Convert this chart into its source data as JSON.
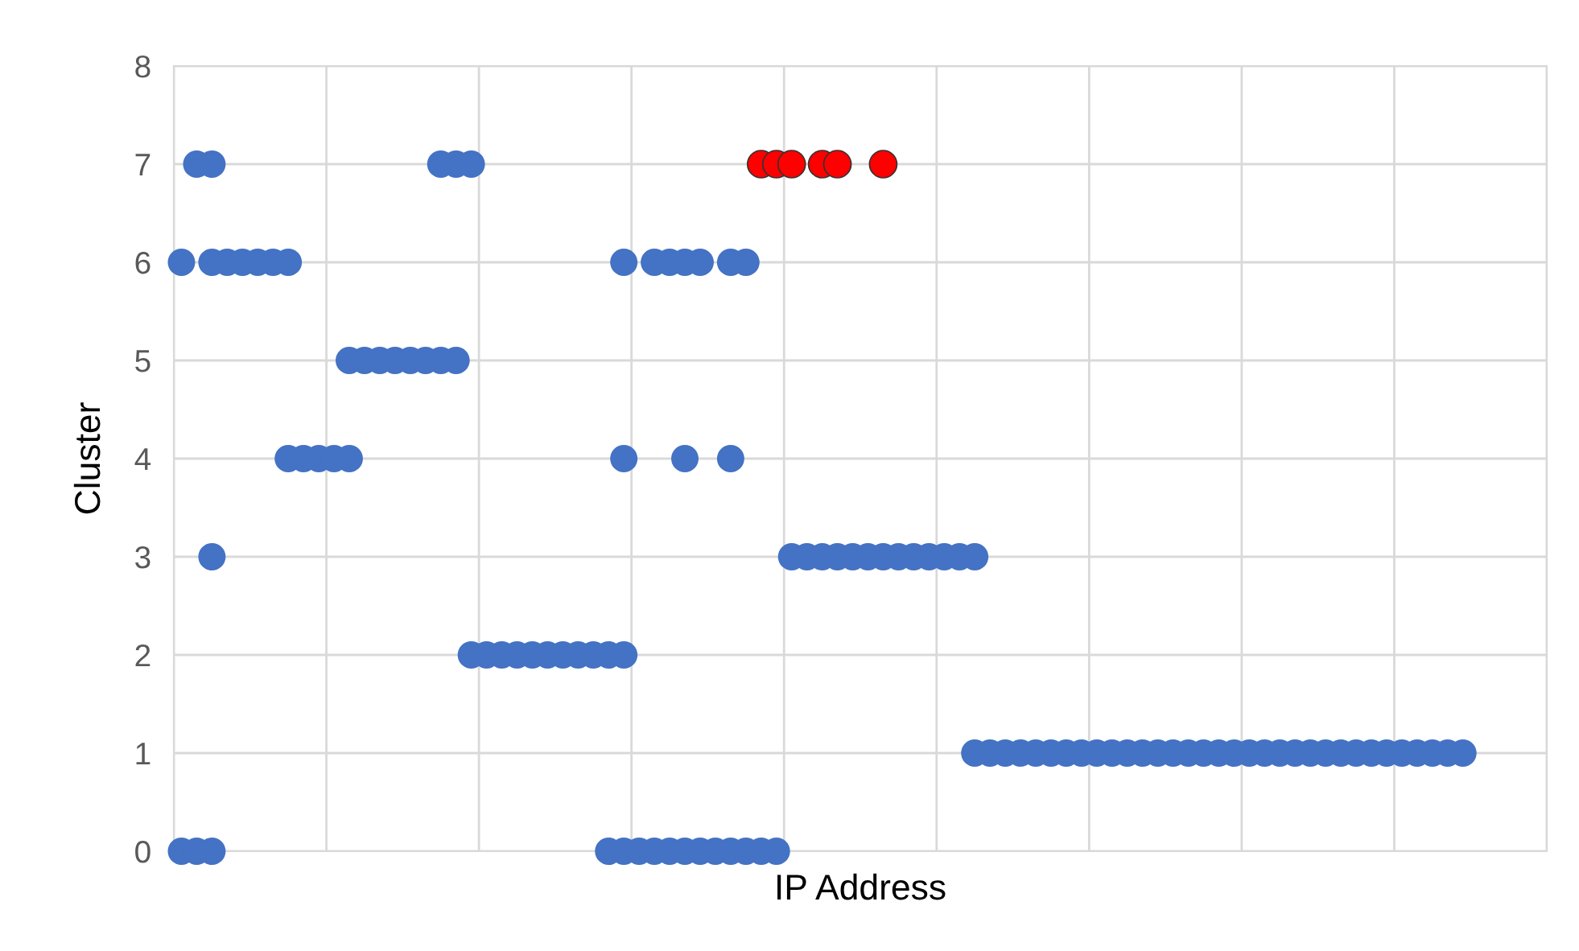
{
  "chart_data": {
    "type": "scatter",
    "xlabel": "IP Address",
    "ylabel": "Cluster",
    "categories": [
      null,
      null,
      null,
      null,
      null,
      null,
      null,
      null,
      null,
      null,
      null,
      null,
      null,
      null,
      null,
      null,
      null,
      null,
      null,
      null,
      null,
      null,
      null,
      null,
      null,
      null,
      null,
      null,
      null,
      null,
      null,
      null,
      null,
      null,
      null,
      null,
      null,
      null,
      null,
      null,
      null,
      null,
      null,
      null,
      null,
      null,
      null,
      null,
      null,
      null,
      null,
      null,
      null,
      null,
      null,
      null,
      null,
      null,
      null,
      null,
      null,
      null,
      null,
      null,
      null,
      null,
      null,
      null,
      null,
      null,
      null,
      null,
      null,
      null,
      null,
      null,
      null,
      null,
      null,
      null,
      null,
      null,
      null,
      null,
      null,
      null,
      null,
      null,
      null,
      null
    ],
    "ylim": [
      0,
      8
    ],
    "yticks": [
      0,
      1,
      2,
      3,
      4,
      5,
      6,
      7,
      8
    ],
    "tick_labels": "y",
    "grid": true,
    "marker": "circle",
    "series": [
      {
        "color": "#4472c4",
        "values": [
          0,
          0,
          0,
          null,
          null,
          null,
          null,
          null,
          null,
          null,
          null,
          null,
          null,
          null,
          null,
          null,
          null,
          null,
          null,
          null,
          null,
          null,
          null,
          null,
          null,
          null,
          null,
          null,
          0,
          0,
          0,
          0,
          0,
          0,
          0,
          0,
          0,
          0,
          0,
          0,
          null,
          null,
          null,
          null,
          null,
          null,
          null,
          null,
          null,
          null,
          null,
          null,
          null,
          null,
          null,
          null,
          null,
          null,
          null,
          null,
          null,
          null,
          null,
          null,
          null,
          null,
          null,
          null,
          null,
          null,
          null,
          null,
          null,
          null,
          null,
          null,
          null,
          null,
          null,
          null,
          null,
          null,
          null,
          null,
          null,
          null,
          null,
          null,
          null,
          null
        ]
      },
      {
        "color": "#4472c4",
        "values": [
          null,
          null,
          null,
          null,
          null,
          null,
          null,
          null,
          null,
          null,
          null,
          null,
          null,
          null,
          null,
          null,
          null,
          null,
          null,
          null,
          null,
          null,
          null,
          null,
          null,
          null,
          null,
          null,
          null,
          null,
          null,
          null,
          null,
          null,
          null,
          null,
          null,
          null,
          null,
          null,
          null,
          null,
          null,
          null,
          null,
          null,
          null,
          null,
          null,
          null,
          null,
          null,
          1,
          1,
          1,
          1,
          1,
          1,
          1,
          1,
          1,
          1,
          1,
          1,
          1,
          1,
          1,
          1,
          1,
          1,
          1,
          1,
          1,
          1,
          1,
          1,
          1,
          1,
          1,
          1,
          1,
          1,
          1,
          1,
          1,
          null,
          null,
          null,
          null,
          null
        ]
      },
      {
        "color": "#4472c4",
        "values": [
          null,
          null,
          null,
          null,
          null,
          null,
          null,
          null,
          null,
          null,
          null,
          null,
          null,
          null,
          null,
          null,
          null,
          null,
          null,
          2,
          2,
          2,
          2,
          2,
          2,
          2,
          2,
          2,
          2,
          2,
          null,
          null,
          null,
          null,
          null,
          null,
          null,
          null,
          null,
          null,
          null,
          null,
          null,
          null,
          null,
          null,
          null,
          null,
          null,
          null,
          null,
          null,
          null,
          null,
          null,
          null,
          null,
          null,
          null,
          null,
          null,
          null,
          null,
          null,
          null,
          null,
          null,
          null,
          null,
          null,
          null,
          null,
          null,
          null,
          null,
          null,
          null,
          null,
          null,
          null,
          null,
          null,
          null,
          null,
          null,
          null,
          null,
          null,
          null,
          null
        ]
      },
      {
        "color": "#4472c4",
        "values": [
          null,
          null,
          3,
          null,
          null,
          null,
          null,
          null,
          null,
          null,
          null,
          null,
          null,
          null,
          null,
          null,
          null,
          null,
          null,
          null,
          null,
          null,
          null,
          null,
          null,
          null,
          null,
          null,
          null,
          null,
          null,
          null,
          null,
          null,
          null,
          null,
          null,
          null,
          null,
          null,
          3,
          3,
          3,
          3,
          3,
          3,
          3,
          3,
          3,
          3,
          3,
          3,
          3,
          null,
          null,
          null,
          null,
          null,
          null,
          null,
          null,
          null,
          null,
          null,
          null,
          null,
          null,
          null,
          null,
          null,
          null,
          null,
          null,
          null,
          null,
          null,
          null,
          null,
          null,
          null,
          null,
          null,
          null,
          null,
          null,
          null,
          null,
          null,
          null,
          null
        ]
      },
      {
        "color": "#4472c4",
        "values": [
          null,
          null,
          null,
          null,
          null,
          null,
          null,
          4,
          4,
          4,
          4,
          4,
          null,
          null,
          null,
          null,
          null,
          null,
          null,
          null,
          null,
          null,
          null,
          null,
          null,
          null,
          null,
          null,
          null,
          4,
          null,
          null,
          null,
          4,
          null,
          null,
          4,
          null,
          null,
          null,
          null,
          null,
          null,
          null,
          null,
          null,
          null,
          null,
          null,
          null,
          null,
          null,
          null,
          null,
          null,
          null,
          null,
          null,
          null,
          null,
          null,
          null,
          null,
          null,
          null,
          null,
          null,
          null,
          null,
          null,
          null,
          null,
          null,
          null,
          null,
          null,
          null,
          null,
          null,
          null,
          null,
          null,
          null,
          null,
          null,
          null,
          null,
          null,
          null,
          null
        ]
      },
      {
        "color": "#4472c4",
        "values": [
          null,
          null,
          null,
          null,
          null,
          null,
          null,
          null,
          null,
          null,
          null,
          5,
          5,
          5,
          5,
          5,
          5,
          5,
          5,
          null,
          null,
          null,
          null,
          null,
          null,
          null,
          null,
          null,
          null,
          null,
          null,
          null,
          null,
          null,
          null,
          null,
          null,
          null,
          null,
          null,
          null,
          null,
          null,
          null,
          null,
          null,
          null,
          null,
          null,
          null,
          null,
          null,
          null,
          null,
          null,
          null,
          null,
          null,
          null,
          null,
          null,
          null,
          null,
          null,
          null,
          null,
          null,
          null,
          null,
          null,
          null,
          null,
          null,
          null,
          null,
          null,
          null,
          null,
          null,
          null,
          null,
          null,
          null,
          null,
          null,
          null,
          null,
          null,
          null,
          null
        ]
      },
      {
        "color": "#4472c4",
        "values": [
          6,
          null,
          6,
          6,
          6,
          6,
          6,
          6,
          null,
          null,
          null,
          null,
          null,
          null,
          null,
          null,
          null,
          null,
          null,
          null,
          null,
          null,
          null,
          null,
          null,
          null,
          null,
          null,
          null,
          6,
          null,
          6,
          6,
          6,
          6,
          null,
          6,
          6,
          null,
          null,
          null,
          null,
          null,
          null,
          null,
          null,
          null,
          null,
          null,
          null,
          null,
          null,
          null,
          null,
          null,
          null,
          null,
          null,
          null,
          null,
          null,
          null,
          null,
          null,
          null,
          null,
          null,
          null,
          null,
          null,
          null,
          null,
          null,
          null,
          null,
          null,
          null,
          null,
          null,
          null,
          null,
          null,
          null,
          null,
          null,
          null,
          null,
          null,
          null,
          null
        ]
      },
      {
        "color": "#4472c4",
        "values": [
          null,
          7,
          7,
          null,
          null,
          null,
          null,
          null,
          null,
          null,
          null,
          null,
          null,
          null,
          null,
          null,
          null,
          7,
          7,
          7,
          null,
          null,
          null,
          null,
          null,
          null,
          null,
          null,
          null,
          null,
          null,
          null,
          null,
          null,
          null,
          null,
          null,
          null,
          null,
          null,
          null,
          null,
          null,
          null,
          null,
          null,
          null,
          null,
          null,
          null,
          null,
          null,
          null,
          null,
          null,
          null,
          null,
          null,
          null,
          null,
          null,
          null,
          null,
          null,
          null,
          null,
          null,
          null,
          null,
          null,
          null,
          null,
          null,
          null,
          null,
          null,
          null,
          null,
          null,
          null,
          null,
          null,
          null,
          null,
          null,
          null,
          null,
          null,
          null,
          null
        ]
      },
      {
        "color": "#ff0000",
        "values": [
          null,
          null,
          null,
          null,
          null,
          null,
          null,
          null,
          null,
          null,
          null,
          null,
          null,
          null,
          null,
          null,
          null,
          null,
          null,
          null,
          null,
          null,
          null,
          null,
          null,
          null,
          null,
          null,
          null,
          null,
          null,
          null,
          null,
          null,
          null,
          null,
          null,
          null,
          7,
          7,
          7,
          null,
          7,
          7,
          null,
          null,
          7,
          null,
          null,
          null,
          null,
          null,
          null,
          null,
          null,
          null,
          null,
          null,
          null,
          null,
          null,
          null,
          null,
          null,
          null,
          null,
          null,
          null,
          null,
          null,
          null,
          null,
          null,
          null,
          null,
          null,
          null,
          null,
          null,
          null,
          null,
          null,
          null,
          null,
          null,
          null,
          null,
          null,
          null,
          null
        ]
      }
    ]
  }
}
